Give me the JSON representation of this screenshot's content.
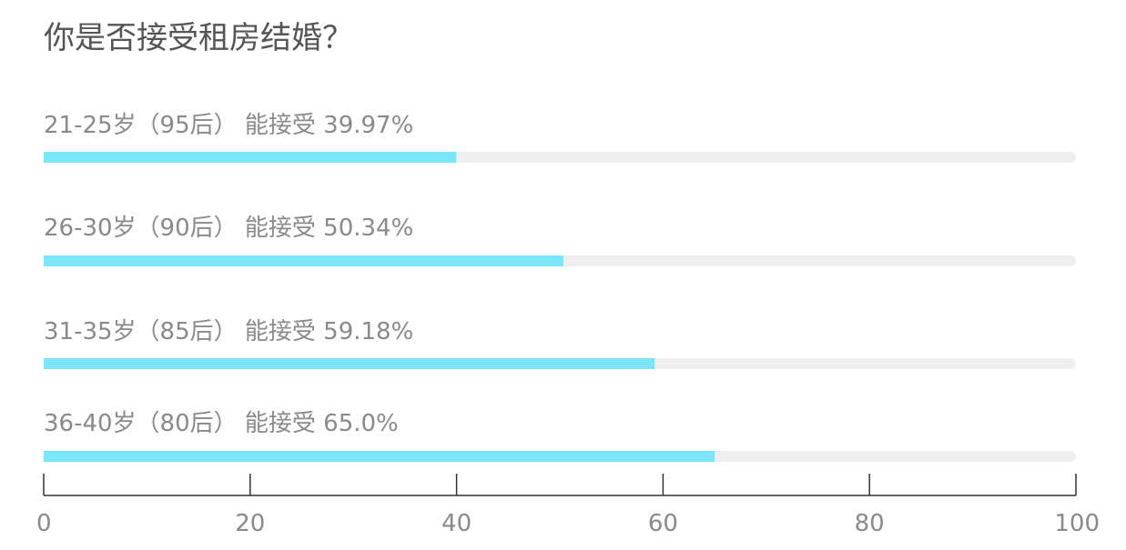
{
  "chart_data": {
    "type": "bar",
    "orientation": "horizontal",
    "title": "你是否接受租房结婚？",
    "rows": [
      {
        "label": "21-25岁（95后） 能接受 39.97%",
        "value": 39.97
      },
      {
        "label": "26-30岁（90后） 能接受 50.34%",
        "value": 50.34
      },
      {
        "label": "31-35岁（85后） 能接受 59.18%",
        "value": 59.18
      },
      {
        "label": "36-40岁（80后） 能接受 65.0%",
        "value": 65.0
      }
    ],
    "xlim": [
      0,
      100
    ],
    "xticks": [
      "0",
      "20",
      "40",
      "60",
      "80",
      "100"
    ],
    "grid": false,
    "bar_color": "#7ae6f7",
    "track_color": "#efefef",
    "axis_color": "#333333"
  }
}
